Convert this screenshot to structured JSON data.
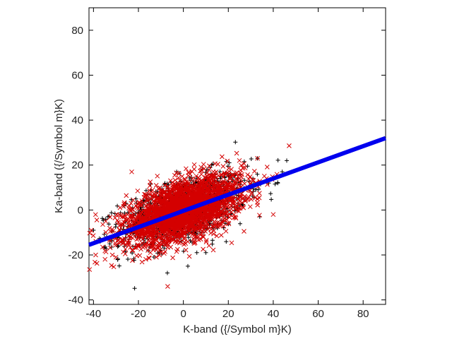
{
  "chart_data": {
    "type": "scatter",
    "title": "",
    "xlabel": "K-band ({/Symbol m}K)",
    "ylabel": "Ka-band ({/Symbol m}K)",
    "xlim": [
      -42,
      90
    ],
    "ylim": [
      -42,
      90
    ],
    "xticks": [
      -40,
      -20,
      0,
      20,
      40,
      60,
      80
    ],
    "yticks": [
      -40,
      -20,
      0,
      20,
      40,
      60,
      80
    ],
    "grid": false,
    "legend": "none",
    "series": [
      {
        "marker": "plus",
        "color": "#000000",
        "cloud": {
          "center": [
            0,
            0
          ],
          "sx": 14,
          "sy": 8,
          "corr": 0.55,
          "count": 1200
        },
        "points": [
          [
            2,
            -25
          ],
          [
            46,
            22
          ],
          [
            44,
            17
          ],
          [
            33,
            23
          ],
          [
            -40,
            -9
          ],
          [
            -37,
            -14
          ],
          [
            10,
            -19
          ],
          [
            6,
            -19
          ],
          [
            38,
            12
          ],
          [
            42,
            12
          ],
          [
            34,
            -3
          ],
          [
            20,
            15
          ],
          [
            -3,
            17
          ]
        ]
      },
      {
        "marker": "cross",
        "color": "#d40000",
        "cloud": {
          "center": [
            0,
            0
          ],
          "sx": 13,
          "sy": 7.5,
          "corr": 0.55,
          "count": 2600
        },
        "points": [
          [
            -7,
            -34
          ],
          [
            -41,
            -9
          ],
          [
            -39,
            -20
          ],
          [
            -30,
            -21
          ],
          [
            40,
            -2
          ],
          [
            37,
            14
          ],
          [
            33,
            23
          ],
          [
            -23,
            17
          ],
          [
            -12,
            -21
          ]
        ]
      },
      {
        "marker": "line",
        "color": "#0000ee",
        "x": [
          -42,
          90
        ],
        "y": [
          -15.5,
          32
        ]
      }
    ]
  }
}
